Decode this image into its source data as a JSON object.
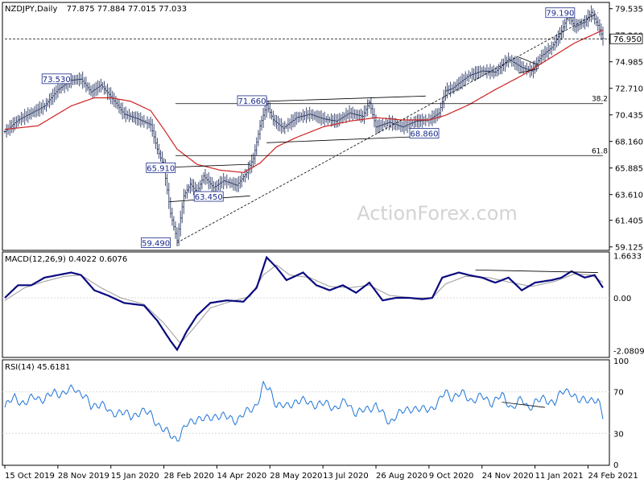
{
  "header": {
    "symbol": "NZDJPY,Daily",
    "ohlc": "77.875 77.884 77.015 77.033"
  },
  "watermark": "ActionForex.com",
  "colors": {
    "price": "#2d3a66",
    "ma": "#cc2222",
    "macd": "#0a0a80",
    "signal": "#9a9a9a",
    "rsi": "#1e74d8",
    "grid": "#d8d8d8",
    "frame": "#000000",
    "label_border": "#1a2a8a",
    "watermark": "#d3d3d3"
  },
  "chart_data": [
    {
      "id": "price",
      "type": "line",
      "y_ticks": [
        "79.535",
        "77.260",
        "74.985",
        "72.710",
        "70.435",
        "68.160",
        "65.885",
        "63.610",
        "61.405",
        "59.125"
      ],
      "ylim": [
        58.9,
        80.0
      ],
      "x_ticks": [
        {
          "i": 0,
          "label": "15 Oct 2019"
        },
        {
          "i": 32,
          "label": "28 Nov 2019"
        },
        {
          "i": 64,
          "label": "15 Jan 2020"
        },
        {
          "i": 96,
          "label": "28 Feb 2020"
        },
        {
          "i": 128,
          "label": "14 Apr 2020"
        },
        {
          "i": 160,
          "label": "28 May 2020"
        },
        {
          "i": 192,
          "label": "13 Jul 2020"
        },
        {
          "i": 224,
          "label": "26 Aug 2020"
        },
        {
          "i": 256,
          "label": "9 Oct 2020"
        },
        {
          "i": 288,
          "label": "24 Nov 2020"
        },
        {
          "i": 320,
          "label": "11 Jan 2021"
        },
        {
          "i": 352,
          "label": "24 Feb 2021"
        }
      ],
      "close_anchors": [
        [
          0,
          69.0
        ],
        [
          8,
          70.0
        ],
        [
          16,
          70.6
        ],
        [
          24,
          71.2
        ],
        [
          32,
          72.6
        ],
        [
          40,
          73.4
        ],
        [
          46,
          73.5
        ],
        [
          52,
          72.4
        ],
        [
          58,
          73.0
        ],
        [
          64,
          72.0
        ],
        [
          72,
          70.5
        ],
        [
          80,
          70.1
        ],
        [
          88,
          69.6
        ],
        [
          92,
          67.5
        ],
        [
          96,
          66.0
        ],
        [
          100,
          62.0
        ],
        [
          104,
          59.7
        ],
        [
          108,
          63.5
        ],
        [
          112,
          64.5
        ],
        [
          116,
          63.8
        ],
        [
          120,
          65.2
        ],
        [
          126,
          64.2
        ],
        [
          132,
          64.8
        ],
        [
          140,
          64.4
        ],
        [
          146,
          65.5
        ],
        [
          150,
          66.7
        ],
        [
          154,
          69.5
        ],
        [
          158,
          71.3
        ],
        [
          162,
          70.0
        ],
        [
          168,
          69.3
        ],
        [
          176,
          70.2
        ],
        [
          184,
          70.5
        ],
        [
          192,
          70.1
        ],
        [
          200,
          69.9
        ],
        [
          208,
          70.6
        ],
        [
          216,
          70.3
        ],
        [
          220,
          71.5
        ],
        [
          224,
          69.4
        ],
        [
          232,
          69.8
        ],
        [
          240,
          69.4
        ],
        [
          248,
          69.9
        ],
        [
          256,
          70.0
        ],
        [
          262,
          70.6
        ],
        [
          266,
          72.5
        ],
        [
          270,
          72.7
        ],
        [
          280,
          73.8
        ],
        [
          288,
          74.2
        ],
        [
          296,
          74.1
        ],
        [
          304,
          75.2
        ],
        [
          312,
          74.5
        ],
        [
          318,
          74.2
        ],
        [
          324,
          75.5
        ],
        [
          330,
          76.2
        ],
        [
          336,
          77.6
        ],
        [
          340,
          79.0
        ],
        [
          344,
          78.0
        ],
        [
          350,
          78.4
        ],
        [
          354,
          79.2
        ],
        [
          358,
          78.1
        ],
        [
          361,
          77.0
        ]
      ],
      "ma_anchors": [
        [
          0,
          69.2
        ],
        [
          20,
          69.5
        ],
        [
          40,
          71.2
        ],
        [
          54,
          71.9
        ],
        [
          64,
          71.9
        ],
        [
          76,
          71.6
        ],
        [
          88,
          70.8
        ],
        [
          96,
          69.2
        ],
        [
          104,
          67.5
        ],
        [
          116,
          66.2
        ],
        [
          130,
          65.7
        ],
        [
          144,
          65.5
        ],
        [
          154,
          66.3
        ],
        [
          164,
          67.7
        ],
        [
          176,
          68.5
        ],
        [
          192,
          69.4
        ],
        [
          208,
          69.9
        ],
        [
          224,
          70.2
        ],
        [
          240,
          70.0
        ],
        [
          256,
          70.0
        ],
        [
          266,
          70.4
        ],
        [
          280,
          71.3
        ],
        [
          296,
          72.6
        ],
        [
          312,
          73.8
        ],
        [
          328,
          75.2
        ],
        [
          344,
          76.6
        ],
        [
          361,
          77.7
        ]
      ],
      "levels": [
        {
          "i1": 0,
          "i2": 361,
          "y": 76.95,
          "style": "dashed"
        },
        {
          "i1": 103,
          "i2": 361,
          "y": 71.4,
          "label": "38.2"
        },
        {
          "i1": 103,
          "i2": 361,
          "y": 66.95,
          "label": "61.8"
        }
      ],
      "lines": [
        {
          "i1": 104,
          "y1": 59.49,
          "i2": 358,
          "y2": 79.19,
          "style": "dashed"
        },
        {
          "i1": 158,
          "y1": 71.6,
          "i2": 254,
          "y2": 72.05
        },
        {
          "i1": 158,
          "y1": 68.05,
          "i2": 254,
          "y2": 68.6
        },
        {
          "i1": 100,
          "y1": 65.95,
          "i2": 148,
          "y2": 66.2
        },
        {
          "i1": 100,
          "y1": 63.0,
          "i2": 148,
          "y2": 63.5
        },
        {
          "i1": 310,
          "y1": 75.4,
          "i2": 322,
          "y2": 74.7
        },
        {
          "i1": 310,
          "y1": 74.0,
          "i2": 322,
          "y2": 74.4
        }
      ],
      "callouts": [
        {
          "text": "73.530",
          "i": 38,
          "y": 73.53,
          "dx": -14
        },
        {
          "text": "71.660",
          "i": 155,
          "y": 71.66,
          "dx": -12
        },
        {
          "text": "65.910",
          "i": 99,
          "y": 65.91,
          "dx": -10
        },
        {
          "text": "63.450",
          "i": 124,
          "y": 63.45,
          "dx": -2
        },
        {
          "text": "59.490",
          "i": 96,
          "y": 59.49,
          "dx": -10
        },
        {
          "text": "68.860",
          "i": 258,
          "y": 68.86,
          "dx": -10
        },
        {
          "text": "79.190",
          "i": 341,
          "y": 79.19,
          "dx": -12
        }
      ],
      "current_price_label": "76.950"
    },
    {
      "id": "macd",
      "type": "line",
      "title": "MACD(12,26,9) 0.4022 0.6076",
      "y_ticks": [
        "1.6633",
        "0.00",
        "-2.0809"
      ],
      "ylim": [
        -2.32,
        1.78
      ],
      "zero_line": 0.0,
      "macd_anchors": [
        [
          0,
          0.0
        ],
        [
          8,
          0.5
        ],
        [
          16,
          0.5
        ],
        [
          24,
          0.8
        ],
        [
          32,
          0.9
        ],
        [
          40,
          1.0
        ],
        [
          46,
          0.9
        ],
        [
          54,
          0.3
        ],
        [
          62,
          0.1
        ],
        [
          72,
          -0.2
        ],
        [
          84,
          -0.3
        ],
        [
          92,
          -0.9
        ],
        [
          100,
          -1.7
        ],
        [
          104,
          -2.05
        ],
        [
          110,
          -1.3
        ],
        [
          116,
          -0.7
        ],
        [
          124,
          -0.2
        ],
        [
          134,
          -0.1
        ],
        [
          144,
          -0.15
        ],
        [
          152,
          0.4
        ],
        [
          158,
          1.6
        ],
        [
          164,
          1.2
        ],
        [
          170,
          0.7
        ],
        [
          180,
          1.0
        ],
        [
          188,
          0.5
        ],
        [
          196,
          0.3
        ],
        [
          204,
          0.5
        ],
        [
          212,
          0.2
        ],
        [
          220,
          0.6
        ],
        [
          228,
          -0.1
        ],
        [
          236,
          0.0
        ],
        [
          244,
          0.0
        ],
        [
          252,
          -0.05
        ],
        [
          258,
          0.0
        ],
        [
          264,
          0.8
        ],
        [
          274,
          1.0
        ],
        [
          280,
          0.9
        ],
        [
          288,
          0.8
        ],
        [
          296,
          0.6
        ],
        [
          304,
          0.8
        ],
        [
          312,
          0.3
        ],
        [
          320,
          0.6
        ],
        [
          330,
          0.7
        ],
        [
          336,
          0.8
        ],
        [
          342,
          1.05
        ],
        [
          350,
          0.8
        ],
        [
          356,
          0.9
        ],
        [
          361,
          0.4
        ]
      ],
      "signal_anchors": [
        [
          0,
          -0.1
        ],
        [
          12,
          0.4
        ],
        [
          24,
          0.65
        ],
        [
          36,
          0.85
        ],
        [
          46,
          0.9
        ],
        [
          58,
          0.4
        ],
        [
          70,
          0.0
        ],
        [
          84,
          -0.25
        ],
        [
          96,
          -1.0
        ],
        [
          106,
          -1.8
        ],
        [
          114,
          -1.2
        ],
        [
          124,
          -0.4
        ],
        [
          136,
          -0.15
        ],
        [
          148,
          0.05
        ],
        [
          156,
          0.9
        ],
        [
          164,
          1.3
        ],
        [
          172,
          0.9
        ],
        [
          184,
          0.8
        ],
        [
          196,
          0.45
        ],
        [
          208,
          0.4
        ],
        [
          220,
          0.5
        ],
        [
          232,
          0.1
        ],
        [
          246,
          0.0
        ],
        [
          258,
          0.0
        ],
        [
          266,
          0.55
        ],
        [
          278,
          0.85
        ],
        [
          292,
          0.8
        ],
        [
          306,
          0.6
        ],
        [
          318,
          0.45
        ],
        [
          332,
          0.65
        ],
        [
          344,
          0.95
        ],
        [
          354,
          0.9
        ],
        [
          361,
          0.61
        ]
      ],
      "lines": [
        {
          "i1": 284,
          "y1": 1.1,
          "i2": 358,
          "y2": 1.0
        }
      ]
    },
    {
      "id": "rsi",
      "type": "line",
      "title": "RSI(14) 45.6181",
      "y_ticks": [
        "100",
        "70",
        "30",
        "0"
      ],
      "ylim": [
        0,
        100
      ],
      "ref_lines": [
        70,
        30
      ],
      "rsi_anchors": [
        [
          0,
          55
        ],
        [
          6,
          65
        ],
        [
          12,
          58
        ],
        [
          18,
          66
        ],
        [
          24,
          62
        ],
        [
          30,
          70
        ],
        [
          36,
          68
        ],
        [
          42,
          74
        ],
        [
          48,
          66
        ],
        [
          52,
          55
        ],
        [
          58,
          60
        ],
        [
          64,
          48
        ],
        [
          70,
          52
        ],
        [
          76,
          45
        ],
        [
          82,
          52
        ],
        [
          88,
          48
        ],
        [
          92,
          40
        ],
        [
          96,
          33
        ],
        [
          100,
          28
        ],
        [
          104,
          25
        ],
        [
          110,
          38
        ],
        [
          116,
          45
        ],
        [
          122,
          43
        ],
        [
          128,
          48
        ],
        [
          134,
          45
        ],
        [
          140,
          43
        ],
        [
          146,
          50
        ],
        [
          152,
          58
        ],
        [
          156,
          75
        ],
        [
          160,
          72
        ],
        [
          164,
          58
        ],
        [
          170,
          55
        ],
        [
          176,
          62
        ],
        [
          182,
          60
        ],
        [
          188,
          58
        ],
        [
          194,
          58
        ],
        [
          200,
          55
        ],
        [
          206,
          60
        ],
        [
          212,
          50
        ],
        [
          218,
          52
        ],
        [
          224,
          58
        ],
        [
          228,
          48
        ],
        [
          232,
          40
        ],
        [
          236,
          48
        ],
        [
          240,
          50
        ],
        [
          246,
          55
        ],
        [
          252,
          52
        ],
        [
          258,
          55
        ],
        [
          262,
          60
        ],
        [
          266,
          70
        ],
        [
          270,
          65
        ],
        [
          276,
          68
        ],
        [
          282,
          62
        ],
        [
          288,
          65
        ],
        [
          294,
          60
        ],
        [
          300,
          66
        ],
        [
          306,
          55
        ],
        [
          312,
          62
        ],
        [
          316,
          55
        ],
        [
          320,
          60
        ],
        [
          326,
          63
        ],
        [
          332,
          60
        ],
        [
          338,
          72
        ],
        [
          342,
          70
        ],
        [
          346,
          60
        ],
        [
          352,
          64
        ],
        [
          358,
          60
        ],
        [
          361,
          46
        ]
      ],
      "lines": [
        {
          "i1": 300,
          "y1": 60,
          "i2": 326,
          "y2": 55
        }
      ]
    }
  ]
}
